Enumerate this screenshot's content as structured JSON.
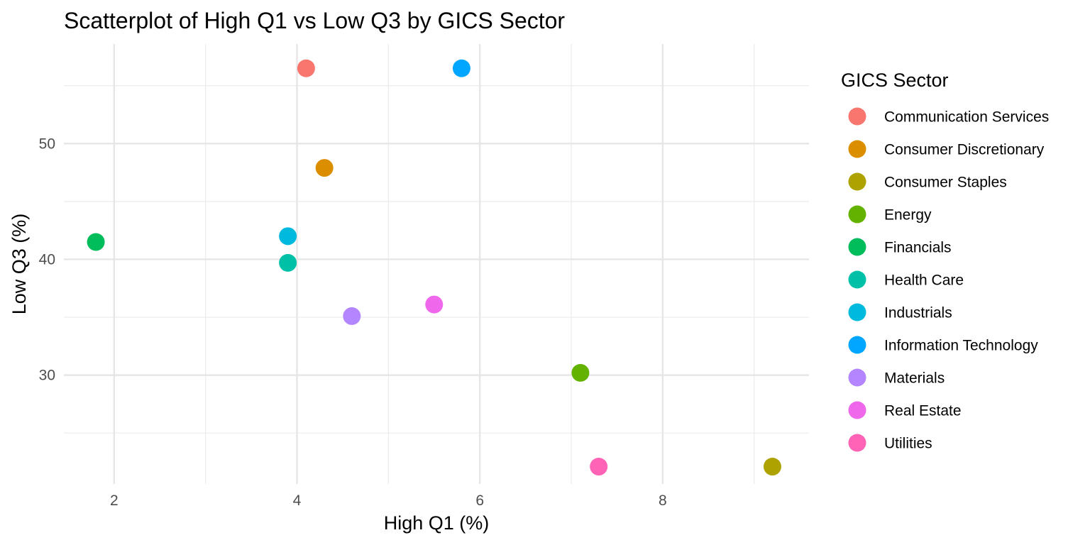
{
  "chart_data": {
    "type": "scatter",
    "title": "Scatterplot of High Q1 vs Low Q3 by GICS Sector",
    "xlabel": "High Q1 (%)",
    "ylabel": "Low Q3 (%)",
    "xlim": [
      1.45,
      9.6
    ],
    "ylim": [
      20.6,
      58.6
    ],
    "x_ticks": [
      2,
      4,
      6,
      8
    ],
    "y_ticks": [
      30,
      40,
      50
    ],
    "x_minor_ticks": [
      3,
      5,
      7,
      9
    ],
    "y_minor_ticks": [
      25,
      35,
      45,
      55
    ],
    "grid": true,
    "legend": {
      "title": "GICS Sector",
      "position": "right"
    },
    "series": [
      {
        "name": "Communication Services",
        "color": "#F8766D",
        "x": [
          4.1
        ],
        "y": [
          56.5
        ]
      },
      {
        "name": "Consumer Discretionary",
        "color": "#DB8E00",
        "x": [
          4.3
        ],
        "y": [
          47.9
        ]
      },
      {
        "name": "Consumer Staples",
        "color": "#AEA200",
        "x": [
          9.2
        ],
        "y": [
          22.1
        ]
      },
      {
        "name": "Energy",
        "color": "#64B200",
        "x": [
          7.1
        ],
        "y": [
          30.2
        ]
      },
      {
        "name": "Financials",
        "color": "#00BD5C",
        "x": [
          1.8
        ],
        "y": [
          41.5
        ]
      },
      {
        "name": "Health Care",
        "color": "#00C1A7",
        "x": [
          3.9
        ],
        "y": [
          39.7
        ]
      },
      {
        "name": "Industrials",
        "color": "#00BADE",
        "x": [
          3.9
        ],
        "y": [
          42.0
        ]
      },
      {
        "name": "Information Technology",
        "color": "#00A6FF",
        "x": [
          5.8
        ],
        "y": [
          56.5
        ]
      },
      {
        "name": "Materials",
        "color": "#B385FF",
        "x": [
          4.6
        ],
        "y": [
          35.1
        ]
      },
      {
        "name": "Real Estate",
        "color": "#EF67EB",
        "x": [
          5.5
        ],
        "y": [
          36.1
        ]
      },
      {
        "name": "Utilities",
        "color": "#FF63B6",
        "x": [
          7.3
        ],
        "y": [
          22.1
        ]
      }
    ]
  }
}
